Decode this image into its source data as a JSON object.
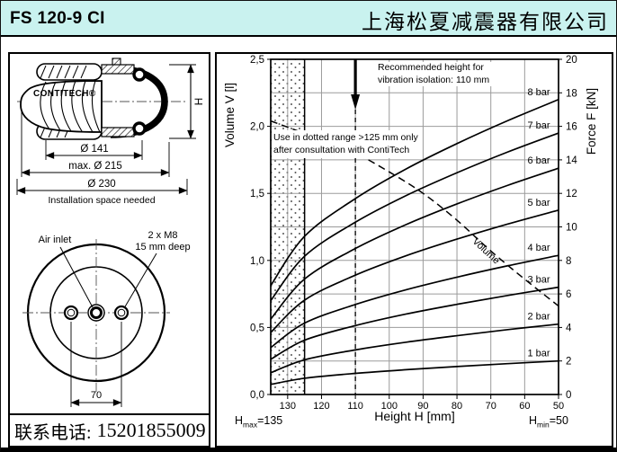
{
  "header": {
    "title": "FS 120-9 CI",
    "company": "上海松夏减震器有限公司"
  },
  "footer": {
    "phone_label": "联系电话:",
    "phone_number": "15201855009"
  },
  "drawing_side": {
    "brand": "CONTITECH®",
    "h_dim": "H",
    "dim_inner": "Ø 141",
    "dim_max": "max. Ø 215",
    "dim_outer": "Ø 230",
    "dim_outer_note": "Installation space needed"
  },
  "drawing_top": {
    "air_inlet": "Air inlet",
    "bolt_line1": "2 x M8",
    "bolt_line2": "15 mm deep",
    "dim_70": "70"
  },
  "chart_data": {
    "type": "line",
    "xlabel": "Height H [mm]",
    "ylabel_left": "Volume V [l]",
    "ylabel_right": "Force F [kN]",
    "xlim": [
      135,
      50
    ],
    "x_ticks": [
      130,
      120,
      110,
      100,
      90,
      80,
      70,
      60,
      50
    ],
    "force_axis": {
      "min": 0,
      "max": 20,
      "tick_step": 2
    },
    "volume_axis": {
      "min": 0,
      "max": 2.5,
      "tick_step": 0.5,
      "tick_labels": [
        "0,0",
        "0,5",
        "1,0",
        "1,5",
        "2,0",
        "2,5"
      ]
    },
    "grid": {
      "vertical_step_mm": 10,
      "horizontal_step_kN": 2,
      "color": "#9b9b9b"
    },
    "dotted_region": {
      "from_mm": 135,
      "to_mm": 125
    },
    "x_heights": [
      135,
      125,
      110,
      95,
      80,
      65,
      50
    ],
    "series": [
      {
        "name": "1 bar",
        "unit": "kN",
        "values": [
          0.6,
          0.97,
          1.26,
          1.48,
          1.67,
          1.84,
          2.0
        ]
      },
      {
        "name": "2 bar",
        "unit": "kN",
        "values": [
          1.3,
          2.07,
          2.66,
          3.12,
          3.51,
          3.87,
          4.2
        ]
      },
      {
        "name": "3 bar",
        "unit": "kN",
        "values": [
          2.1,
          3.24,
          4.11,
          4.8,
          5.38,
          5.91,
          6.4
        ]
      },
      {
        "name": "4 bar",
        "unit": "kN",
        "values": [
          2.8,
          4.26,
          5.37,
          6.25,
          7.0,
          7.68,
          8.3
        ]
      },
      {
        "name": "5 bar",
        "unit": "kN",
        "values": [
          3.7,
          5.63,
          7.12,
          8.28,
          9.27,
          10.17,
          11.0
        ]
      },
      {
        "name": "6 bar",
        "unit": "kN",
        "values": [
          4.5,
          6.89,
          8.71,
          10.14,
          11.37,
          12.48,
          13.5
        ]
      },
      {
        "name": "7 bar",
        "unit": "kN",
        "values": [
          5.6,
          8.25,
          10.28,
          11.87,
          13.23,
          14.47,
          15.6
        ]
      },
      {
        "name": "8 bar",
        "unit": "kN",
        "values": [
          6.5,
          9.44,
          11.69,
          13.46,
          14.97,
          16.34,
          17.6
        ]
      }
    ],
    "volume_curve": {
      "name": "Volume",
      "unit": "l",
      "x": [
        135,
        120,
        110,
        100,
        90,
        80,
        70,
        60,
        50
      ],
      "values": [
        2.04,
        1.9,
        1.8,
        1.66,
        1.5,
        1.3,
        1.07,
        0.86,
        0.66
      ]
    },
    "annotations": {
      "recommended": {
        "line1": "Recommended height for",
        "line2": "vibration isolation: 110 mm",
        "height_mm": 110
      },
      "dotted_note": {
        "line1": "Use in dotted range >125 mm only",
        "line2": "after consultation with ContiTech"
      },
      "hmax": {
        "base": "H",
        "sub": "max",
        "value": "=135"
      },
      "hmin": {
        "base": "H",
        "sub": "min",
        "value": "=50"
      }
    }
  }
}
